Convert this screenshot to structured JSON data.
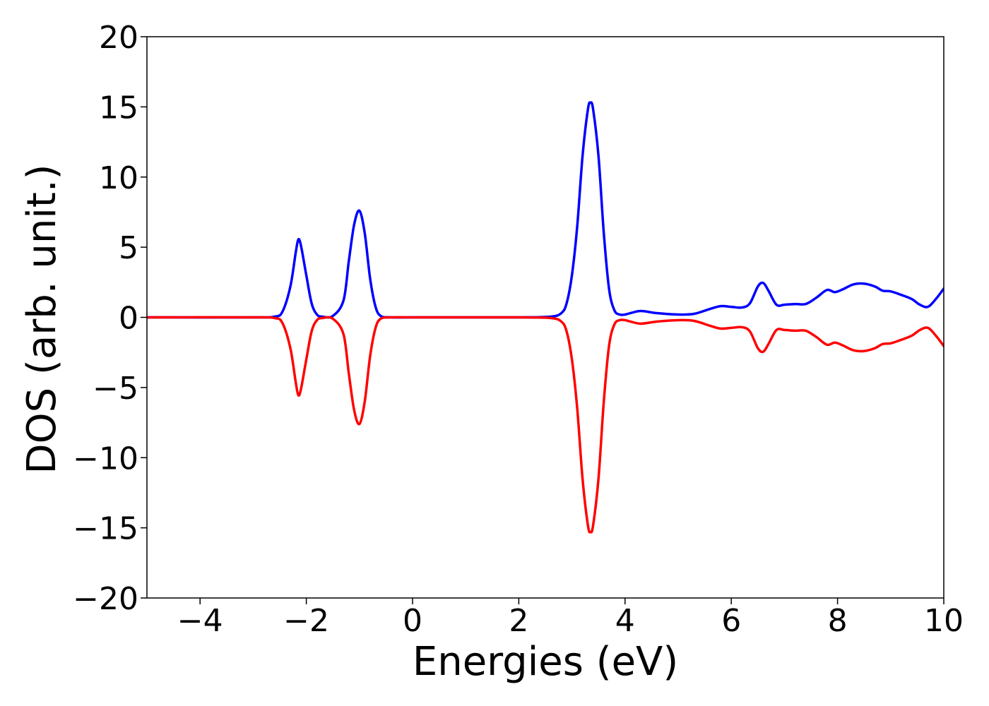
{
  "chart_data": {
    "type": "line",
    "title": "",
    "xlabel": "Energies (eV)",
    "ylabel": "DOS (arb. unit.)",
    "xlim": [
      -5,
      10
    ],
    "ylim": [
      -20,
      20
    ],
    "xticks": [
      -4,
      -2,
      0,
      2,
      4,
      6,
      8,
      10
    ],
    "yticks": [
      20,
      15,
      10,
      5,
      0,
      -5,
      -10,
      -15,
      -20
    ],
    "xtick_labels": [
      "−4",
      "−2",
      "0",
      "2",
      "4",
      "6",
      "8",
      "10"
    ],
    "ytick_labels": [
      "20",
      "15",
      "10",
      "5",
      "0",
      "−5",
      "−10",
      "−15",
      "−20"
    ],
    "grid": false,
    "legend": "none",
    "series": [
      {
        "color": "#0000ff",
        "x": [
          -5,
          -3,
          -2.6,
          -2.45,
          -2.3,
          -2.2,
          -2.15,
          -2.1,
          -2.0,
          -1.9,
          -1.8,
          -1.7,
          -1.5,
          -1.3,
          -1.2,
          -1.1,
          -1.0,
          -0.9,
          -0.8,
          -0.7,
          -0.6,
          -0.4,
          0,
          1,
          2,
          2.6,
          2.8,
          2.9,
          3.0,
          3.1,
          3.2,
          3.3,
          3.35,
          3.4,
          3.5,
          3.6,
          3.7,
          3.8,
          3.9,
          4.0,
          4.1,
          4.3,
          4.6,
          5.0,
          5.3,
          5.6,
          5.8,
          6.0,
          6.2,
          6.35,
          6.5,
          6.6,
          6.7,
          6.85,
          7.0,
          7.2,
          7.4,
          7.6,
          7.8,
          7.95,
          8.1,
          8.3,
          8.5,
          8.7,
          8.85,
          9.0,
          9.2,
          9.4,
          9.55,
          9.7,
          9.85,
          10.0
        ],
        "y": [
          0,
          0,
          0.05,
          0.4,
          2.2,
          4.6,
          5.55,
          5.1,
          3.0,
          1.0,
          0.2,
          0.05,
          0.1,
          1.2,
          4.0,
          6.6,
          7.6,
          6.0,
          2.8,
          0.8,
          0.1,
          0,
          0,
          0,
          0,
          0.05,
          0.3,
          1.0,
          3.0,
          6.5,
          11.5,
          14.8,
          15.3,
          14.8,
          11.5,
          6.0,
          2.0,
          0.5,
          0.2,
          0.2,
          0.3,
          0.45,
          0.3,
          0.2,
          0.25,
          0.6,
          0.8,
          0.75,
          0.7,
          1.0,
          2.2,
          2.45,
          1.9,
          0.9,
          0.9,
          0.95,
          0.95,
          1.4,
          1.95,
          1.8,
          2.0,
          2.35,
          2.4,
          2.2,
          1.9,
          1.85,
          1.6,
          1.3,
          0.9,
          0.75,
          1.3,
          2.05
        ]
      },
      {
        "color": "#ff0000",
        "x": [
          -5,
          -3,
          -2.6,
          -2.45,
          -2.3,
          -2.2,
          -2.15,
          -2.1,
          -2.0,
          -1.9,
          -1.8,
          -1.7,
          -1.5,
          -1.3,
          -1.2,
          -1.1,
          -1.0,
          -0.9,
          -0.8,
          -0.7,
          -0.6,
          -0.4,
          0,
          1,
          2,
          2.6,
          2.8,
          2.9,
          3.0,
          3.1,
          3.2,
          3.3,
          3.35,
          3.4,
          3.5,
          3.6,
          3.7,
          3.8,
          3.9,
          4.0,
          4.1,
          4.3,
          4.6,
          5.0,
          5.3,
          5.6,
          5.8,
          6.0,
          6.2,
          6.35,
          6.5,
          6.6,
          6.7,
          6.85,
          7.0,
          7.2,
          7.4,
          7.6,
          7.8,
          7.95,
          8.1,
          8.3,
          8.5,
          8.7,
          8.85,
          9.0,
          9.2,
          9.4,
          9.55,
          9.7,
          9.85,
          10.0
        ],
        "y": [
          0,
          0,
          -0.05,
          -0.4,
          -2.2,
          -4.6,
          -5.55,
          -5.1,
          -3.0,
          -1.0,
          -0.2,
          -0.05,
          -0.1,
          -1.2,
          -4.0,
          -6.6,
          -7.6,
          -6.0,
          -2.8,
          -0.8,
          -0.1,
          0,
          0,
          0,
          0,
          -0.05,
          -0.3,
          -1.0,
          -3.0,
          -6.5,
          -11.5,
          -14.8,
          -15.3,
          -14.8,
          -11.5,
          -6.0,
          -2.0,
          -0.5,
          -0.2,
          -0.2,
          -0.3,
          -0.45,
          -0.3,
          -0.2,
          -0.25,
          -0.6,
          -0.8,
          -0.75,
          -0.7,
          -1.0,
          -2.2,
          -2.45,
          -1.9,
          -0.9,
          -0.9,
          -0.95,
          -0.95,
          -1.4,
          -1.95,
          -1.8,
          -2.0,
          -2.35,
          -2.4,
          -2.2,
          -1.9,
          -1.85,
          -1.6,
          -1.3,
          -0.9,
          -0.75,
          -1.3,
          -2.05
        ]
      }
    ]
  }
}
